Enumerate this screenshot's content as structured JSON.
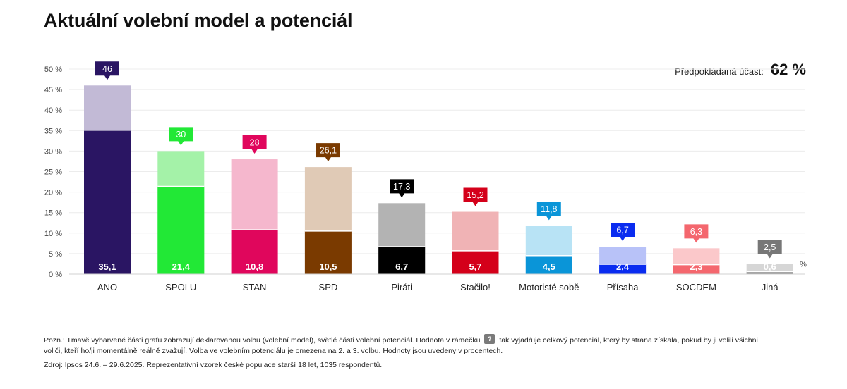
{
  "title": "Aktuální volební model a potenciál",
  "turnout": {
    "label": "Předpokládaná účast:",
    "value": "62 %"
  },
  "chart_data": {
    "type": "bar",
    "title": "Aktuální volební model a potenciál",
    "unit": "%",
    "ylim": [
      0,
      50
    ],
    "yticks": [
      0,
      5,
      10,
      15,
      20,
      25,
      30,
      35,
      40,
      45,
      50
    ],
    "ytick_labels": [
      "0 %",
      "5 %",
      "10 %",
      "15 %",
      "20 %",
      "25 %",
      "30 %",
      "35 %",
      "40 %",
      "45 %",
      "50 %"
    ],
    "grid": true,
    "categories": [
      "ANO",
      "SPOLU",
      "STAN",
      "SPD",
      "Piráti",
      "Stačilo!",
      "Motoristé sobě",
      "Přísaha",
      "SOCDEM",
      "Jiná"
    ],
    "series": [
      {
        "name": "Volební model",
        "values": [
          35.1,
          21.4,
          10.8,
          10.5,
          6.7,
          5.7,
          4.5,
          2.4,
          2.3,
          0.6
        ],
        "labels": [
          "35,1",
          "21,4",
          "10,8",
          "10,5",
          "6,7",
          "5,7",
          "4,5",
          "2,4",
          "2,3",
          "0,6"
        ]
      },
      {
        "name": "Volební potenciál",
        "values": [
          46,
          30,
          28,
          26.1,
          17.3,
          15.2,
          11.8,
          6.7,
          6.3,
          2.5
        ],
        "labels": [
          "46",
          "30",
          "28",
          "26,1",
          "17,3",
          "15,2",
          "11,8",
          "6,7",
          "6,3",
          "2,5"
        ]
      }
    ],
    "colors_dark": [
      "#2a1563",
      "#22e836",
      "#e0065c",
      "#7a3a00",
      "#000000",
      "#d4001a",
      "#0a95d8",
      "#0a2cf0",
      "#f4676e",
      "#888888"
    ],
    "colors_light": [
      "#c2bad6",
      "#a4f2a8",
      "#f5b7cd",
      "#e0cab6",
      "#b3b3b3",
      "#f0b3b5",
      "#b8e3f5",
      "#b8c2f8",
      "#fbc8ca",
      "#d6d6d6"
    ],
    "badge_colors": [
      "#2a1563",
      "#22e836",
      "#e0065c",
      "#7a3a00",
      "#000000",
      "#d4001a",
      "#0a95d8",
      "#0a2cf0",
      "#f4676e",
      "#777777"
    ]
  },
  "note": {
    "text_before": "Pozn.: Tmavě vybarvené části grafu zobrazují deklarovanou volbu (volební model), světlé části volební potenciál. Hodnota v rámečku",
    "badge": "?",
    "text_after": "tak vyjadřuje celkový potenciál, který by strana získala, pokud by ji volili všichni voliči, kteří ho/ji momentálně reálně zvažují. Volba ve volebním potenciálu je omezena na 2. a 3. volbu. Hodnoty jsou uvedeny v procentech."
  },
  "source": "Zdroj: Ipsos 24.6. – 29.6.2025. Reprezentativní vzorek české populace starší 18 let, 1035 respondentů."
}
